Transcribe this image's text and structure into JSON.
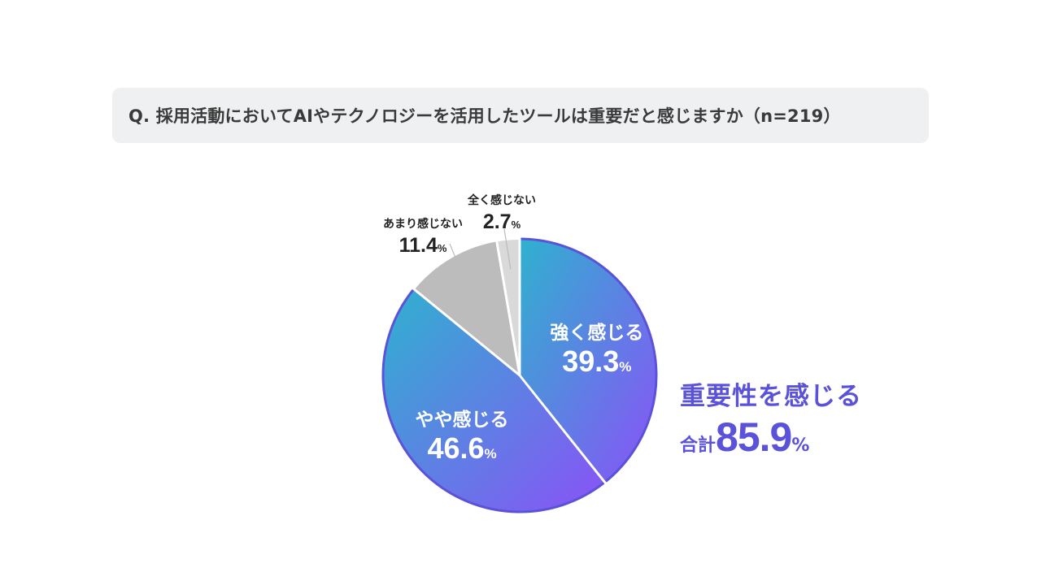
{
  "question": "Q. 採用活動においてAIやテクノロジーを活用したツールは重要だと感じますか（n=219）",
  "summary": {
    "label": "重要性を感じる",
    "total_prefix": "合計",
    "total_value": "85.9",
    "total_unit": "%"
  },
  "colors": {
    "gradient_start": "#2fb1cf",
    "gradient_end": "#8a52f7",
    "outline": "#5a52d8",
    "grey_slice": "#bcbcbc",
    "light_grey_slice": "#d9d9d9",
    "summary_text": "#5a52d8"
  },
  "chart_data": {
    "type": "pie",
    "unit": "%",
    "slices": [
      {
        "label": "強く感じる",
        "value": 39.3,
        "value_text": "39.3"
      },
      {
        "label": "やや感じる",
        "value": 46.6,
        "value_text": "46.6"
      },
      {
        "label": "あまり感じない",
        "value": 11.4,
        "value_text": "11.4"
      },
      {
        "label": "全く感じない",
        "value": 2.7,
        "value_text": "2.7"
      }
    ]
  }
}
